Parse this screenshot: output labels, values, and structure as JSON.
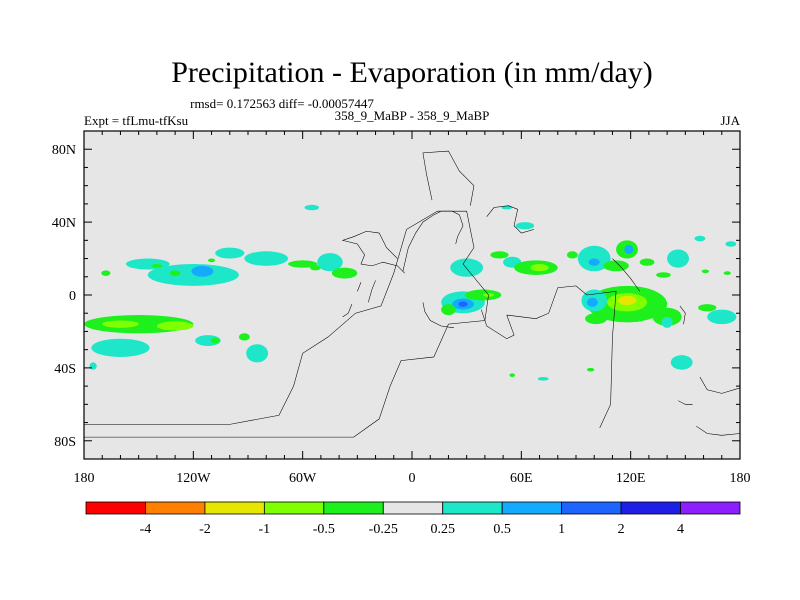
{
  "chart_data": {
    "type": "heatmap",
    "title": "Precipitation - Evaporation (in mm/day)",
    "stats": "rmsd= 0.172563 diff= -0.00057447",
    "left_label": "Expt = tfLmu-tfKsu",
    "center_label": "358_9_MaBP - 358_9_MaBP",
    "right_label": "JJA",
    "x_range": [
      -180,
      180
    ],
    "y_range": [
      -90,
      90
    ],
    "x_ticks": [
      {
        "value": -180,
        "label": "180"
      },
      {
        "value": -120,
        "label": "120W"
      },
      {
        "value": -60,
        "label": "60W"
      },
      {
        "value": 0,
        "label": "0"
      },
      {
        "value": 60,
        "label": "60E"
      },
      {
        "value": 120,
        "label": "120E"
      },
      {
        "value": 180,
        "label": "180"
      }
    ],
    "y_ticks": [
      {
        "value": 80,
        "label": "80N"
      },
      {
        "value": 40,
        "label": "40N"
      },
      {
        "value": 0,
        "label": "0"
      },
      {
        "value": -40,
        "label": "40S"
      },
      {
        "value": -80,
        "label": "80S"
      }
    ],
    "background_color": "#e6e6e6",
    "colorbar": {
      "colors": [
        "#ff0000",
        "#ff8000",
        "#e6e600",
        "#80ff00",
        "#1ef01e",
        "#e6e6e6",
        "#1ee6c8",
        "#14aaff",
        "#1e64ff",
        "#1e1ee6",
        "#8c1eff"
      ],
      "labels": [
        "-4",
        "-2",
        "-1",
        "-0.5",
        "-0.25",
        "0.25",
        "0.5",
        "1",
        "2",
        "4"
      ]
    },
    "anomalies": [
      {
        "lon": -150,
        "lat": -16,
        "rlon": 30,
        "rlat": 5,
        "level": -0.3
      },
      {
        "lon": -160,
        "lat": -16,
        "rlon": 10,
        "rlat": 2,
        "level": -0.6
      },
      {
        "lon": -130,
        "lat": -17,
        "rlon": 10,
        "rlat": 2.5,
        "level": -0.6
      },
      {
        "lon": -160,
        "lat": -29,
        "rlon": 16,
        "rlat": 5,
        "level": 0.3
      },
      {
        "lon": -112,
        "lat": -25,
        "rlon": 7,
        "rlat": 3,
        "level": 0.3
      },
      {
        "lon": -108,
        "lat": -25,
        "rlon": 2.5,
        "rlat": 1.5,
        "level": -0.3
      },
      {
        "lon": -92,
        "lat": -23,
        "rlon": 3,
        "rlat": 2,
        "level": -0.3
      },
      {
        "lon": -85,
        "lat": -32,
        "rlon": 6,
        "rlat": 5,
        "level": 0.3
      },
      {
        "lon": -145,
        "lat": 17,
        "rlon": 12,
        "rlat": 3,
        "level": 0.3
      },
      {
        "lon": -140,
        "lat": 16,
        "rlon": 3,
        "rlat": 1,
        "level": -0.3
      },
      {
        "lon": -120,
        "lat": 11,
        "rlon": 25,
        "rlat": 6,
        "level": 0.3
      },
      {
        "lon": -115,
        "lat": 13,
        "rlon": 6,
        "rlat": 3,
        "level": 0.6
      },
      {
        "lon": -130,
        "lat": 12,
        "rlon": 3,
        "rlat": 1.5,
        "level": -0.3
      },
      {
        "lon": -100,
        "lat": 23,
        "rlon": 8,
        "rlat": 3,
        "level": 0.3
      },
      {
        "lon": -80,
        "lat": 20,
        "rlon": 12,
        "rlat": 4,
        "level": 0.3
      },
      {
        "lon": -60,
        "lat": 17,
        "rlon": 8,
        "rlat": 2,
        "level": -0.3
      },
      {
        "lon": -53,
        "lat": 15,
        "rlon": 3,
        "rlat": 1.5,
        "level": -0.3
      },
      {
        "lon": -45,
        "lat": 18,
        "rlon": 7,
        "rlat": 5,
        "level": 0.3
      },
      {
        "lon": -37,
        "lat": 12,
        "rlon": 7,
        "rlat": 3,
        "level": -0.3
      },
      {
        "lon": -55,
        "lat": 48,
        "rlon": 4,
        "rlat": 1.5,
        "level": 0.3
      },
      {
        "lon": -168,
        "lat": 12,
        "rlon": 2.5,
        "rlat": 1.5,
        "level": -0.3
      },
      {
        "lon": -175,
        "lat": -39,
        "rlon": 2,
        "rlat": 2,
        "level": 0.3
      },
      {
        "lon": 28,
        "lat": -4,
        "rlon": 12,
        "rlat": 6,
        "level": 0.3
      },
      {
        "lon": 28,
        "lat": -5,
        "rlon": 6,
        "rlat": 3,
        "level": 0.6
      },
      {
        "lon": 28,
        "lat": -5,
        "rlon": 2.5,
        "rlat": 1.5,
        "level": 1.2
      },
      {
        "lon": 20,
        "lat": -8,
        "rlon": 4,
        "rlat": 3,
        "level": -0.3
      },
      {
        "lon": 39,
        "lat": 0,
        "rlon": 10,
        "rlat": 3,
        "level": -0.3
      },
      {
        "lon": 42,
        "lat": 0,
        "rlon": 3,
        "rlat": 1,
        "level": -0.6
      },
      {
        "lon": 30,
        "lat": 15,
        "rlon": 9,
        "rlat": 5,
        "level": 0.3
      },
      {
        "lon": 48,
        "lat": 22,
        "rlon": 5,
        "rlat": 2,
        "level": -0.3
      },
      {
        "lon": 55,
        "lat": 18,
        "rlon": 5,
        "rlat": 3,
        "level": 0.3
      },
      {
        "lon": 68,
        "lat": 15,
        "rlon": 12,
        "rlat": 4,
        "level": -0.3
      },
      {
        "lon": 70,
        "lat": 15,
        "rlon": 5,
        "rlat": 2,
        "level": -0.6
      },
      {
        "lon": 62,
        "lat": 38,
        "rlon": 5,
        "rlat": 2,
        "level": 0.3
      },
      {
        "lon": 52,
        "lat": 48,
        "rlon": 3,
        "rlat": 1,
        "level": 0.3
      },
      {
        "lon": 100,
        "lat": 20,
        "rlon": 9,
        "rlat": 7,
        "level": 0.3
      },
      {
        "lon": 100,
        "lat": 18,
        "rlon": 3,
        "rlat": 2,
        "level": 0.6
      },
      {
        "lon": 88,
        "lat": 22,
        "rlon": 3,
        "rlat": 2,
        "level": -0.3
      },
      {
        "lon": 112,
        "lat": 16,
        "rlon": 7,
        "rlat": 3,
        "level": -0.3
      },
      {
        "lon": 118,
        "lat": 25,
        "rlon": 6,
        "rlat": 5,
        "level": -0.3
      },
      {
        "lon": 119,
        "lat": 25,
        "rlon": 2.5,
        "rlat": 2.5,
        "level": 0.6
      },
      {
        "lon": 129,
        "lat": 18,
        "rlon": 4,
        "rlat": 2,
        "level": -0.3
      },
      {
        "lon": 146,
        "lat": 20,
        "rlon": 6,
        "rlat": 5,
        "level": 0.3
      },
      {
        "lon": 138,
        "lat": 11,
        "rlon": 4,
        "rlat": 1.5,
        "level": -0.3
      },
      {
        "lon": 158,
        "lat": 31,
        "rlon": 3,
        "rlat": 1.5,
        "level": 0.3
      },
      {
        "lon": 175,
        "lat": 28,
        "rlon": 3,
        "rlat": 1.5,
        "level": 0.3
      },
      {
        "lon": 161,
        "lat": 13,
        "rlon": 2,
        "rlat": 1,
        "level": -0.3
      },
      {
        "lon": 173,
        "lat": 12,
        "rlon": 2,
        "rlat": 1,
        "level": -0.3
      },
      {
        "lon": 118,
        "lat": -5,
        "rlon": 22,
        "rlat": 10,
        "level": -0.3
      },
      {
        "lon": 118,
        "lat": -4,
        "rlon": 11,
        "rlat": 5,
        "level": -0.6
      },
      {
        "lon": 118,
        "lat": -3,
        "rlon": 5,
        "rlat": 2.5,
        "level": -1.2
      },
      {
        "lon": 100,
        "lat": -3,
        "rlon": 7,
        "rlat": 6,
        "level": 0.3
      },
      {
        "lon": 99,
        "lat": -4,
        "rlon": 3,
        "rlat": 2.5,
        "level": 0.6
      },
      {
        "lon": 101,
        "lat": -13,
        "rlon": 6,
        "rlat": 3,
        "level": -0.3
      },
      {
        "lon": 140,
        "lat": -12,
        "rlon": 8,
        "rlat": 5,
        "level": -0.3
      },
      {
        "lon": 140,
        "lat": -15,
        "rlon": 3,
        "rlat": 3,
        "level": 0.3
      },
      {
        "lon": 170,
        "lat": -12,
        "rlon": 8,
        "rlat": 4,
        "level": 0.3
      },
      {
        "lon": 162,
        "lat": -7,
        "rlon": 5,
        "rlat": 2,
        "level": -0.3
      },
      {
        "lon": 148,
        "lat": -37,
        "rlon": 6,
        "rlat": 4,
        "level": 0.3
      },
      {
        "lon": 98,
        "lat": -41,
        "rlon": 2,
        "rlat": 1,
        "level": -0.3
      },
      {
        "lon": 72,
        "lat": -46,
        "rlon": 3,
        "rlat": 1,
        "level": 0.3
      },
      {
        "lon": 55,
        "lat": -44,
        "rlon": 1.5,
        "rlat": 1,
        "level": -0.3
      },
      {
        "lon": -110,
        "lat": 19,
        "rlon": 2,
        "rlat": 1,
        "level": -0.3
      }
    ]
  }
}
